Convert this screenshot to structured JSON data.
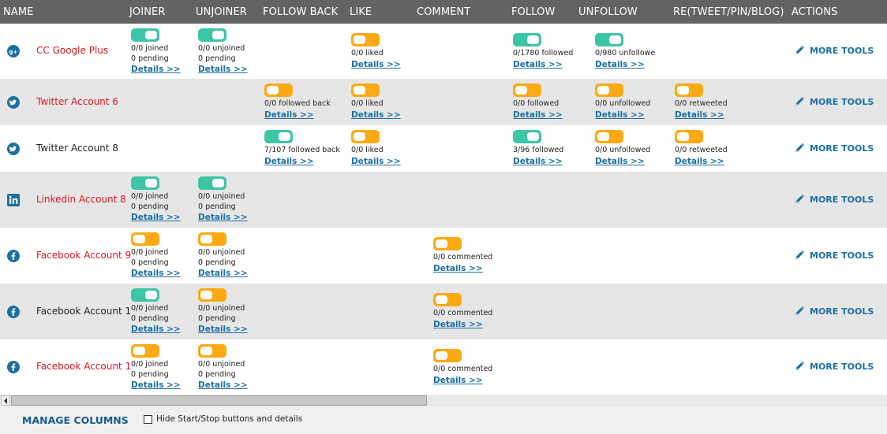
{
  "columns": {
    "name": "NAME",
    "joiner": "JOINER",
    "unjoiner": "UNJOINER",
    "follow_back": "FOLLOW BACK",
    "like": "LIKE",
    "comment": "COMMENT",
    "follow": "FOLLOW",
    "unfollow": "UNFOLLOW",
    "retweet": "RE(TWEET/PIN/BLOG)",
    "actions": "ACTIONS"
  },
  "colors": {
    "toggle_on": "#3cc5a6",
    "toggle_off": "#fbaa14",
    "account_active": "#d3181e",
    "link": "#1c6fa0",
    "icon_blue": "#1d6fa0"
  },
  "details_label": "Details >>",
  "more_tools_label": "MORE TOOLS",
  "rows": [
    {
      "network": "google-plus",
      "name": "CC Google Plus",
      "name_color": "red",
      "cells": {
        "joiner": {
          "on": true,
          "lines": [
            "0/0 joined",
            "0 pending"
          ]
        },
        "unjoiner": {
          "on": true,
          "lines": [
            "0/0 unjoined",
            "0 pending"
          ]
        },
        "like": {
          "on": false,
          "lines": [
            "0/0 liked"
          ]
        },
        "follow": {
          "on": true,
          "lines": [
            "0/1780 followed"
          ]
        },
        "unfollow": {
          "on": true,
          "lines": [
            "0/980 unfollowe"
          ]
        }
      }
    },
    {
      "network": "twitter",
      "name": "Twitter Account 6",
      "name_color": "red",
      "cells": {
        "follow_back": {
          "on": false,
          "lines": [
            "0/0 followed back"
          ]
        },
        "like": {
          "on": false,
          "lines": [
            "0/0 liked"
          ]
        },
        "follow": {
          "on": false,
          "lines": [
            "0/0 followed"
          ]
        },
        "unfollow": {
          "on": false,
          "lines": [
            "0/0 unfollowed"
          ]
        },
        "retweet": {
          "on": false,
          "lines": [
            "0/0 retweeted"
          ]
        }
      }
    },
    {
      "network": "twitter",
      "name": "Twitter Account 8",
      "name_color": "black",
      "cells": {
        "follow_back": {
          "on": true,
          "lines": [
            "7/107 followed back"
          ]
        },
        "like": {
          "on": false,
          "lines": [
            "0/0 liked"
          ]
        },
        "follow": {
          "on": true,
          "lines": [
            "3/96 followed"
          ]
        },
        "unfollow": {
          "on": false,
          "lines": [
            "0/0 unfollowed"
          ]
        },
        "retweet": {
          "on": false,
          "lines": [
            "0/0 retweeted"
          ]
        }
      }
    },
    {
      "network": "linkedin",
      "name": "Linkedin Account 8",
      "name_color": "red",
      "cells": {
        "joiner": {
          "on": true,
          "lines": [
            "0/0 joined",
            "0 pending"
          ]
        },
        "unjoiner": {
          "on": true,
          "lines": [
            "0/0 unjoined",
            "0 pending"
          ]
        }
      }
    },
    {
      "network": "facebook",
      "name": "Facebook Account 9",
      "name_color": "red",
      "cells": {
        "joiner": {
          "on": false,
          "lines": [
            "0/0 joined",
            "0 pending"
          ]
        },
        "unjoiner": {
          "on": false,
          "lines": [
            "0/0 unjoined",
            "0 pending"
          ]
        },
        "comment": {
          "on": false,
          "lines": [
            "0/0 commented"
          ]
        }
      }
    },
    {
      "network": "facebook",
      "name": "Facebook Account 1",
      "name_color": "black",
      "cells": {
        "joiner": {
          "on": true,
          "lines": [
            "0/0 joined",
            "0 pending"
          ]
        },
        "unjoiner": {
          "on": false,
          "lines": [
            "0/0 unjoined",
            "0 pending"
          ]
        },
        "comment": {
          "on": false,
          "lines": [
            "0/0 commented"
          ]
        }
      }
    },
    {
      "network": "facebook",
      "name": "Facebook Account 1",
      "name_color": "red",
      "cells": {
        "joiner": {
          "on": false,
          "lines": [
            "0/0 joined",
            "0 pending"
          ]
        },
        "unjoiner": {
          "on": false,
          "lines": [
            "0/0 unjoined",
            "0 pending"
          ]
        },
        "comment": {
          "on": false,
          "lines": [
            "0/0 commented"
          ]
        }
      }
    }
  ],
  "footer": {
    "manage_columns": "MANAGE COLUMNS",
    "hide_label": "Hide Start/Stop buttons and details",
    "hide_checked": false
  }
}
